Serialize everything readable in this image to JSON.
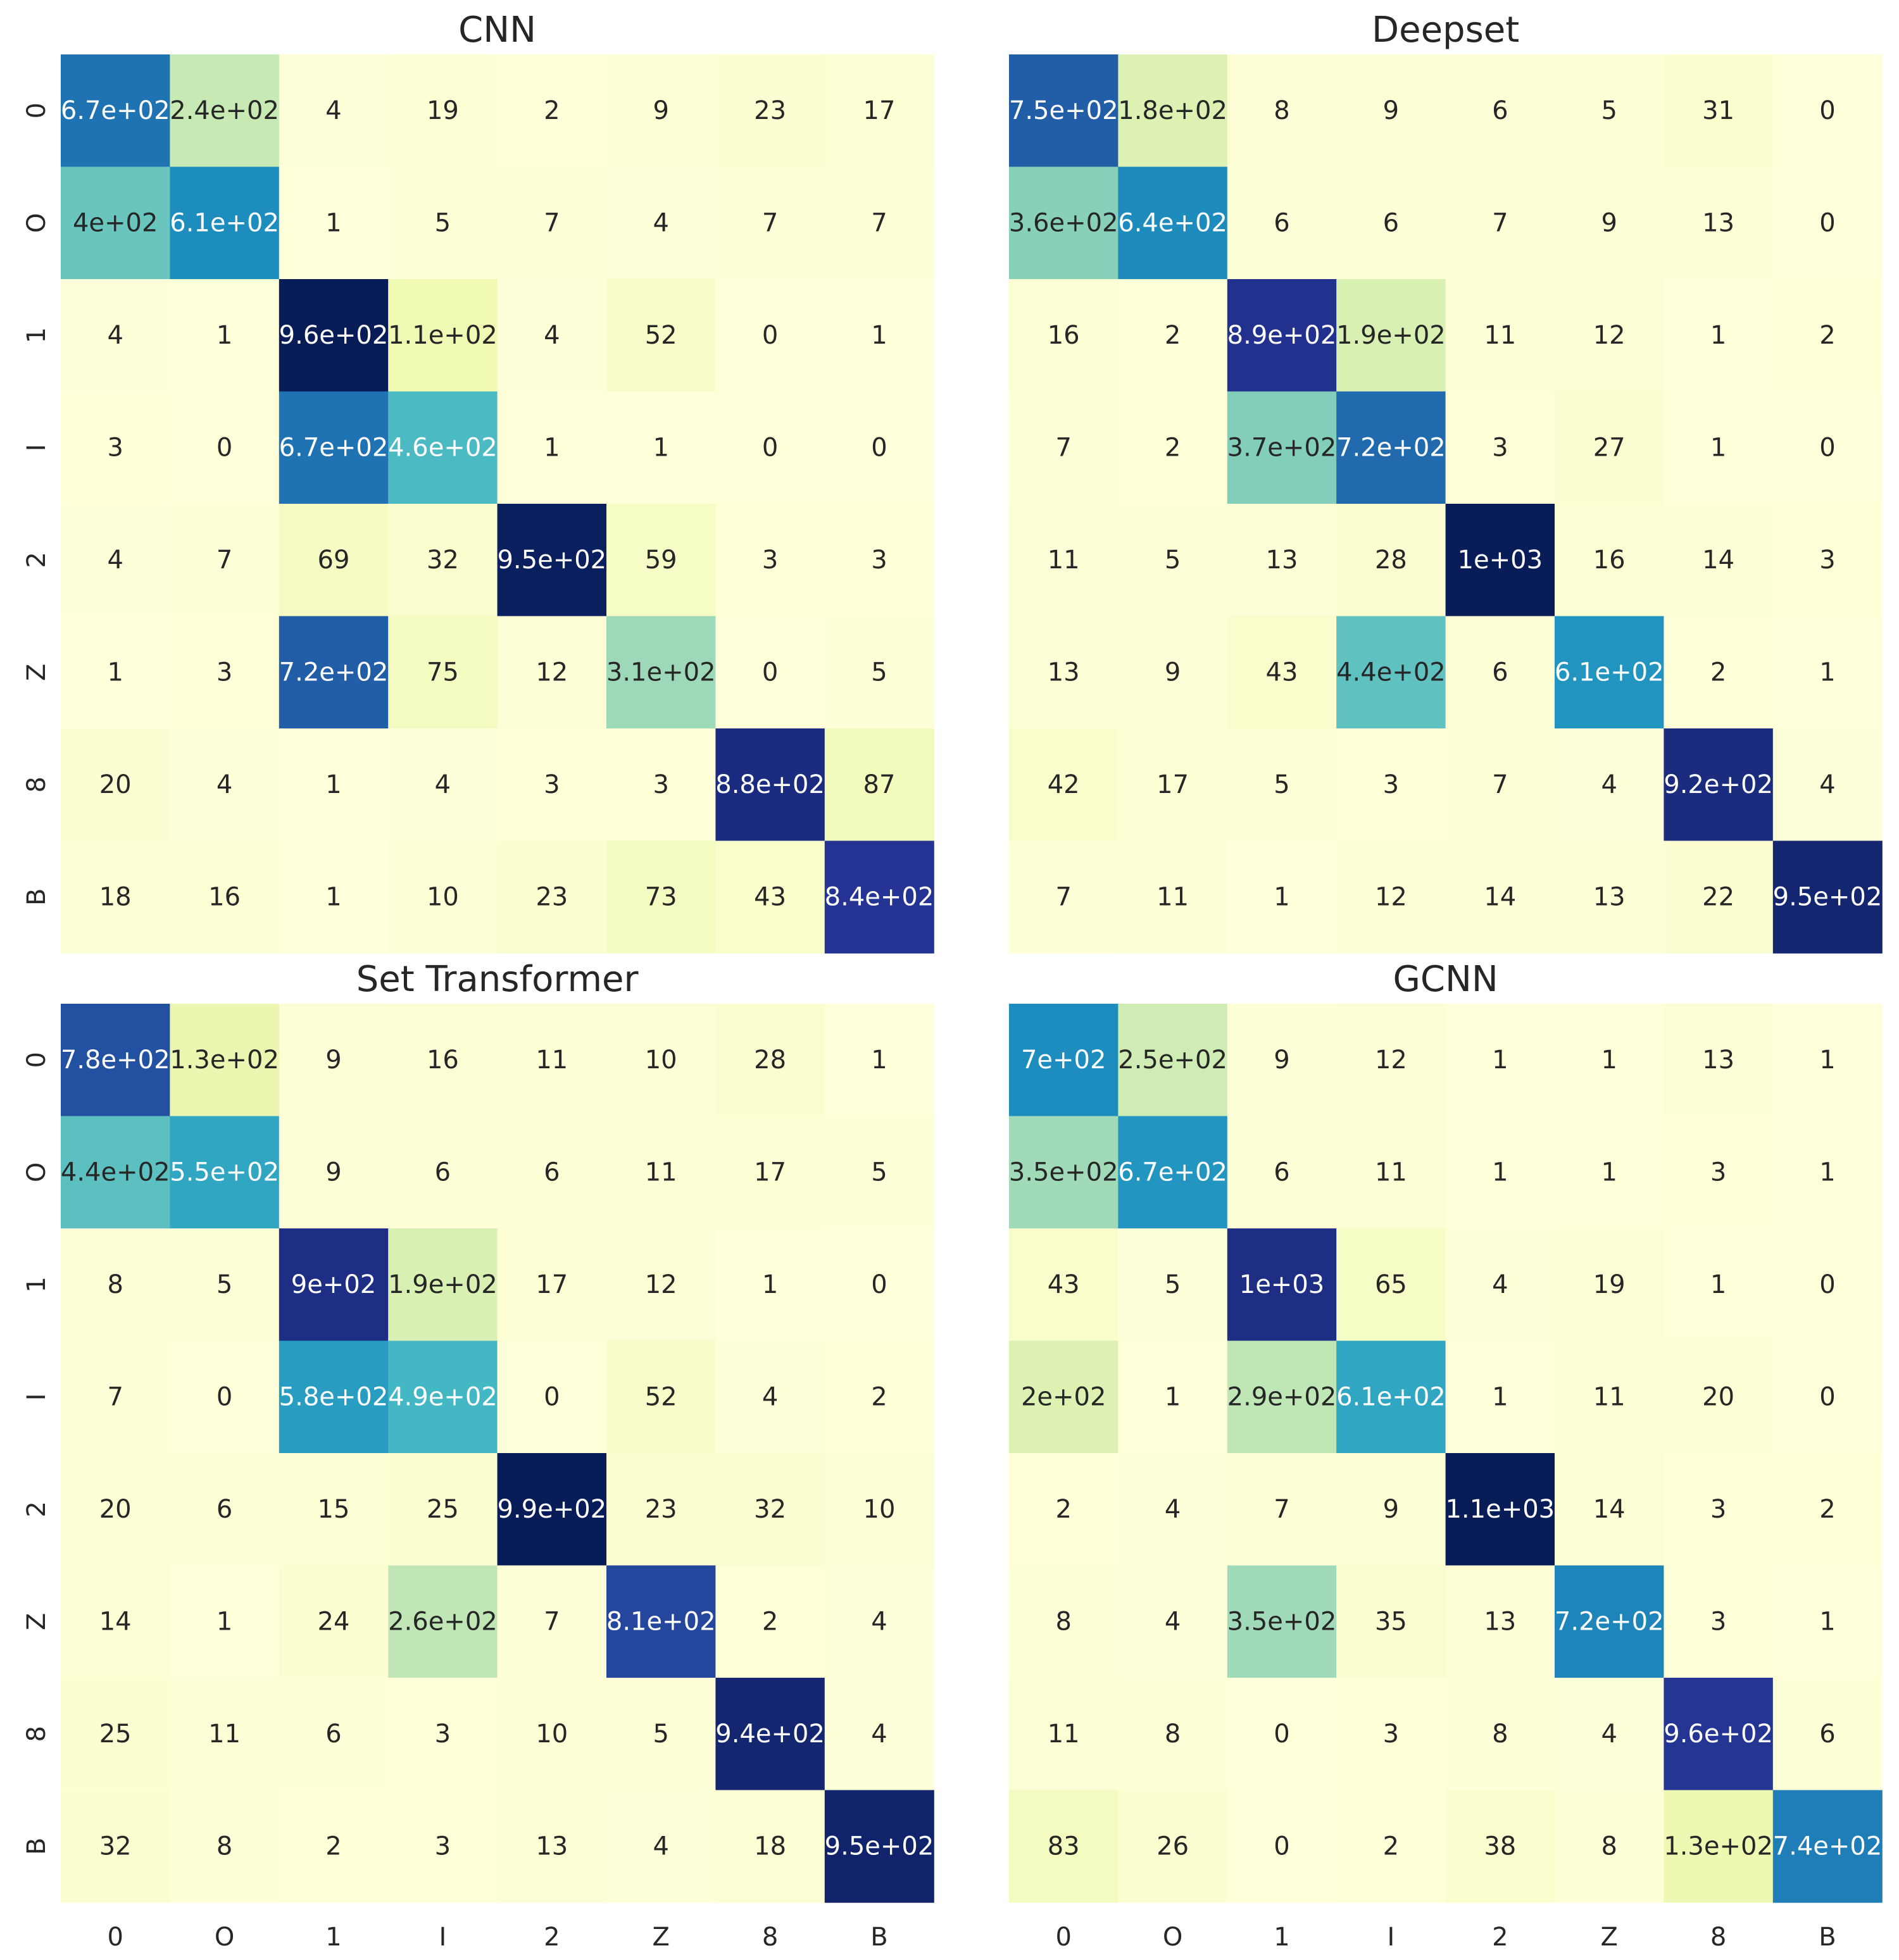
{
  "chart_data": [
    {
      "type": "heatmap",
      "title": "CNN",
      "x_categories": [
        "0",
        "O",
        "1",
        "I",
        "2",
        "Z",
        "8",
        "B"
      ],
      "y_categories": [
        "0",
        "O",
        "1",
        "I",
        "2",
        "Z",
        "8",
        "B"
      ],
      "values": [
        [
          670,
          240,
          4,
          19,
          2,
          9,
          23,
          17
        ],
        [
          400,
          610,
          1,
          5,
          7,
          4,
          7,
          7
        ],
        [
          4,
          1,
          960,
          110,
          4,
          52,
          0,
          1
        ],
        [
          3,
          0,
          670,
          460,
          1,
          1,
          0,
          0
        ],
        [
          4,
          7,
          69,
          32,
          950,
          59,
          3,
          3
        ],
        [
          1,
          3,
          720,
          75,
          12,
          310,
          0,
          5
        ],
        [
          20,
          4,
          1,
          4,
          3,
          3,
          880,
          87
        ],
        [
          18,
          16,
          1,
          10,
          23,
          73,
          43,
          840
        ]
      ],
      "labels": [
        [
          "6.7e+02",
          "2.4e+02",
          "4",
          "19",
          "2",
          "9",
          "23",
          "17"
        ],
        [
          "4e+02",
          "6.1e+02",
          "1",
          "5",
          "7",
          "4",
          "7",
          "7"
        ],
        [
          "4",
          "1",
          "9.6e+02",
          "1.1e+02",
          "4",
          "52",
          "0",
          "1"
        ],
        [
          "3",
          "0",
          "6.7e+02",
          "4.6e+02",
          "1",
          "1",
          "0",
          "0"
        ],
        [
          "4",
          "7",
          "69",
          "32",
          "9.5e+02",
          "59",
          "3",
          "3"
        ],
        [
          "1",
          "3",
          "7.2e+02",
          "75",
          "12",
          "3.1e+02",
          "0",
          "5"
        ],
        [
          "20",
          "4",
          "1",
          "4",
          "3",
          "3",
          "8.8e+02",
          "87"
        ],
        [
          "18",
          "16",
          "1",
          "10",
          "23",
          "73",
          "43",
          "8.4e+02"
        ]
      ],
      "colormap": "YlGnBu",
      "show_x_tick_labels": false,
      "show_y_tick_labels": true
    },
    {
      "type": "heatmap",
      "title": "Deepset",
      "x_categories": [
        "0",
        "O",
        "1",
        "I",
        "2",
        "Z",
        "8",
        "B"
      ],
      "y_categories": [
        "0",
        "O",
        "1",
        "I",
        "2",
        "Z",
        "8",
        "B"
      ],
      "values": [
        [
          750,
          180,
          8,
          9,
          6,
          5,
          31,
          0
        ],
        [
          360,
          640,
          6,
          6,
          7,
          9,
          13,
          0
        ],
        [
          16,
          2,
          890,
          190,
          11,
          12,
          1,
          2
        ],
        [
          7,
          2,
          370,
          720,
          3,
          27,
          1,
          0
        ],
        [
          11,
          5,
          13,
          28,
          1000,
          16,
          14,
          3
        ],
        [
          13,
          9,
          43,
          440,
          6,
          610,
          2,
          1
        ],
        [
          42,
          17,
          5,
          3,
          7,
          4,
          920,
          4
        ],
        [
          7,
          11,
          1,
          12,
          14,
          13,
          22,
          950
        ]
      ],
      "labels": [
        [
          "7.5e+02",
          "1.8e+02",
          "8",
          "9",
          "6",
          "5",
          "31",
          "0"
        ],
        [
          "3.6e+02",
          "6.4e+02",
          "6",
          "6",
          "7",
          "9",
          "13",
          "0"
        ],
        [
          "16",
          "2",
          "8.9e+02",
          "1.9e+02",
          "11",
          "12",
          "1",
          "2"
        ],
        [
          "7",
          "2",
          "3.7e+02",
          "7.2e+02",
          "3",
          "27",
          "1",
          "0"
        ],
        [
          "11",
          "5",
          "13",
          "28",
          "1e+03",
          "16",
          "14",
          "3"
        ],
        [
          "13",
          "9",
          "43",
          "4.4e+02",
          "6",
          "6.1e+02",
          "2",
          "1"
        ],
        [
          "42",
          "17",
          "5",
          "3",
          "7",
          "4",
          "9.2e+02",
          "4"
        ],
        [
          "7",
          "11",
          "1",
          "12",
          "14",
          "13",
          "22",
          "9.5e+02"
        ]
      ],
      "colormap": "YlGnBu",
      "show_x_tick_labels": false,
      "show_y_tick_labels": false
    },
    {
      "type": "heatmap",
      "title": "Set Transformer",
      "x_categories": [
        "0",
        "O",
        "1",
        "I",
        "2",
        "Z",
        "8",
        "B"
      ],
      "y_categories": [
        "0",
        "O",
        "1",
        "I",
        "2",
        "Z",
        "8",
        "B"
      ],
      "values": [
        [
          780,
          130,
          9,
          16,
          11,
          10,
          28,
          1
        ],
        [
          440,
          550,
          9,
          6,
          6,
          11,
          17,
          5
        ],
        [
          8,
          5,
          900,
          190,
          17,
          12,
          1,
          0
        ],
        [
          7,
          0,
          580,
          490,
          0,
          52,
          4,
          2
        ],
        [
          20,
          6,
          15,
          25,
          990,
          23,
          32,
          10
        ],
        [
          14,
          1,
          24,
          260,
          7,
          810,
          2,
          4
        ],
        [
          25,
          11,
          6,
          3,
          10,
          5,
          940,
          4
        ],
        [
          32,
          8,
          2,
          3,
          13,
          4,
          18,
          950
        ]
      ],
      "labels": [
        [
          "7.8e+02",
          "1.3e+02",
          "9",
          "16",
          "11",
          "10",
          "28",
          "1"
        ],
        [
          "4.4e+02",
          "5.5e+02",
          "9",
          "6",
          "6",
          "11",
          "17",
          "5"
        ],
        [
          "8",
          "5",
          "9e+02",
          "1.9e+02",
          "17",
          "12",
          "1",
          "0"
        ],
        [
          "7",
          "0",
          "5.8e+02",
          "4.9e+02",
          "0",
          "52",
          "4",
          "2"
        ],
        [
          "20",
          "6",
          "15",
          "25",
          "9.9e+02",
          "23",
          "32",
          "10"
        ],
        [
          "14",
          "1",
          "24",
          "2.6e+02",
          "7",
          "8.1e+02",
          "2",
          "4"
        ],
        [
          "25",
          "11",
          "6",
          "3",
          "10",
          "5",
          "9.4e+02",
          "4"
        ],
        [
          "32",
          "8",
          "2",
          "3",
          "13",
          "4",
          "18",
          "9.5e+02"
        ]
      ],
      "colormap": "YlGnBu",
      "show_x_tick_labels": true,
      "show_y_tick_labels": true
    },
    {
      "type": "heatmap",
      "title": "GCNN",
      "x_categories": [
        "0",
        "O",
        "1",
        "I",
        "2",
        "Z",
        "8",
        "B"
      ],
      "y_categories": [
        "0",
        "O",
        "1",
        "I",
        "2",
        "Z",
        "8",
        "B"
      ],
      "values": [
        [
          700,
          250,
          9,
          12,
          1,
          1,
          13,
          1
        ],
        [
          350,
          670,
          6,
          11,
          1,
          1,
          3,
          1
        ],
        [
          43,
          5,
          1000,
          65,
          4,
          19,
          1,
          0
        ],
        [
          200,
          1,
          290,
          610,
          1,
          11,
          20,
          0
        ],
        [
          2,
          4,
          7,
          9,
          1100,
          14,
          3,
          2
        ],
        [
          8,
          4,
          350,
          35,
          13,
          720,
          3,
          1
        ],
        [
          11,
          8,
          0,
          3,
          8,
          4,
          960,
          6
        ],
        [
          83,
          26,
          0,
          2,
          38,
          8,
          130,
          740
        ]
      ],
      "labels": [
        [
          "7e+02",
          "2.5e+02",
          "9",
          "12",
          "1",
          "1",
          "13",
          "1"
        ],
        [
          "3.5e+02",
          "6.7e+02",
          "6",
          "11",
          "1",
          "1",
          "3",
          "1"
        ],
        [
          "43",
          "5",
          "1e+03",
          "65",
          "4",
          "19",
          "1",
          "0"
        ],
        [
          "2e+02",
          "1",
          "2.9e+02",
          "6.1e+02",
          "1",
          "11",
          "20",
          "0"
        ],
        [
          "2",
          "4",
          "7",
          "9",
          "1.1e+03",
          "14",
          "3",
          "2"
        ],
        [
          "8",
          "4",
          "3.5e+02",
          "35",
          "13",
          "7.2e+02",
          "3",
          "1"
        ],
        [
          "11",
          "8",
          "0",
          "3",
          "8",
          "4",
          "9.6e+02",
          "6"
        ],
        [
          "83",
          "26",
          "0",
          "2",
          "38",
          "8",
          "1.3e+02",
          "7.4e+02"
        ]
      ],
      "colormap": "YlGnBu",
      "show_x_tick_labels": true,
      "show_y_tick_labels": false
    }
  ]
}
